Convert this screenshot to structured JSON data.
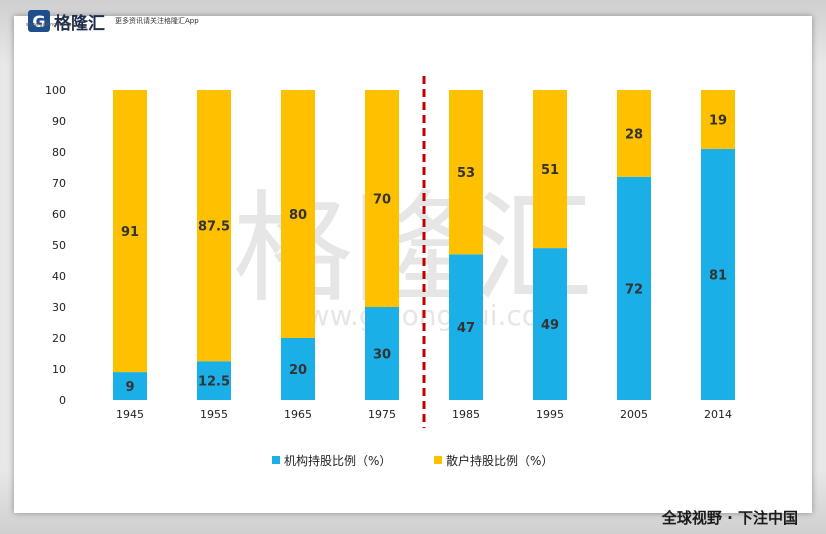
{
  "header": {
    "logo_mark": "G",
    "logo_name": "格隆汇",
    "logo_url": "www.gelonghui.com",
    "tagline": "更多资讯请关注格隆汇App"
  },
  "watermark": {
    "text": "格隆汇",
    "url": "www.gelonghui.com"
  },
  "footer": {
    "slogan": "全球视野 · 下注中国"
  },
  "colors": {
    "institutional": "#1AAFE6",
    "retail": "#FFC000",
    "divider": "#C00000"
  },
  "chart_data": {
    "type": "bar",
    "stacked": true,
    "categories": [
      "1945",
      "1955",
      "1965",
      "1975",
      "1985",
      "1995",
      "2005",
      "2014"
    ],
    "series": [
      {
        "name": "机构持股比例（%）",
        "values": [
          9,
          12.5,
          20,
          30,
          47,
          49,
          72,
          81
        ],
        "labels": [
          "9",
          "12.5",
          "20",
          "30",
          "47",
          "49",
          "72",
          "81"
        ]
      },
      {
        "name": "散户持股比例（%）",
        "values": [
          91,
          87.5,
          80,
          70,
          53,
          51,
          28,
          19
        ],
        "labels": [
          "91",
          "87.5",
          "80",
          "70",
          "53",
          "51",
          "28",
          "19"
        ]
      }
    ],
    "ylim": [
      0,
      100
    ],
    "yticks": [
      "0",
      "10",
      "20",
      "30",
      "40",
      "50",
      "60",
      "70",
      "80",
      "90",
      "100"
    ],
    "grid": false,
    "legend": "bottom",
    "divider_after_category": "1975"
  }
}
